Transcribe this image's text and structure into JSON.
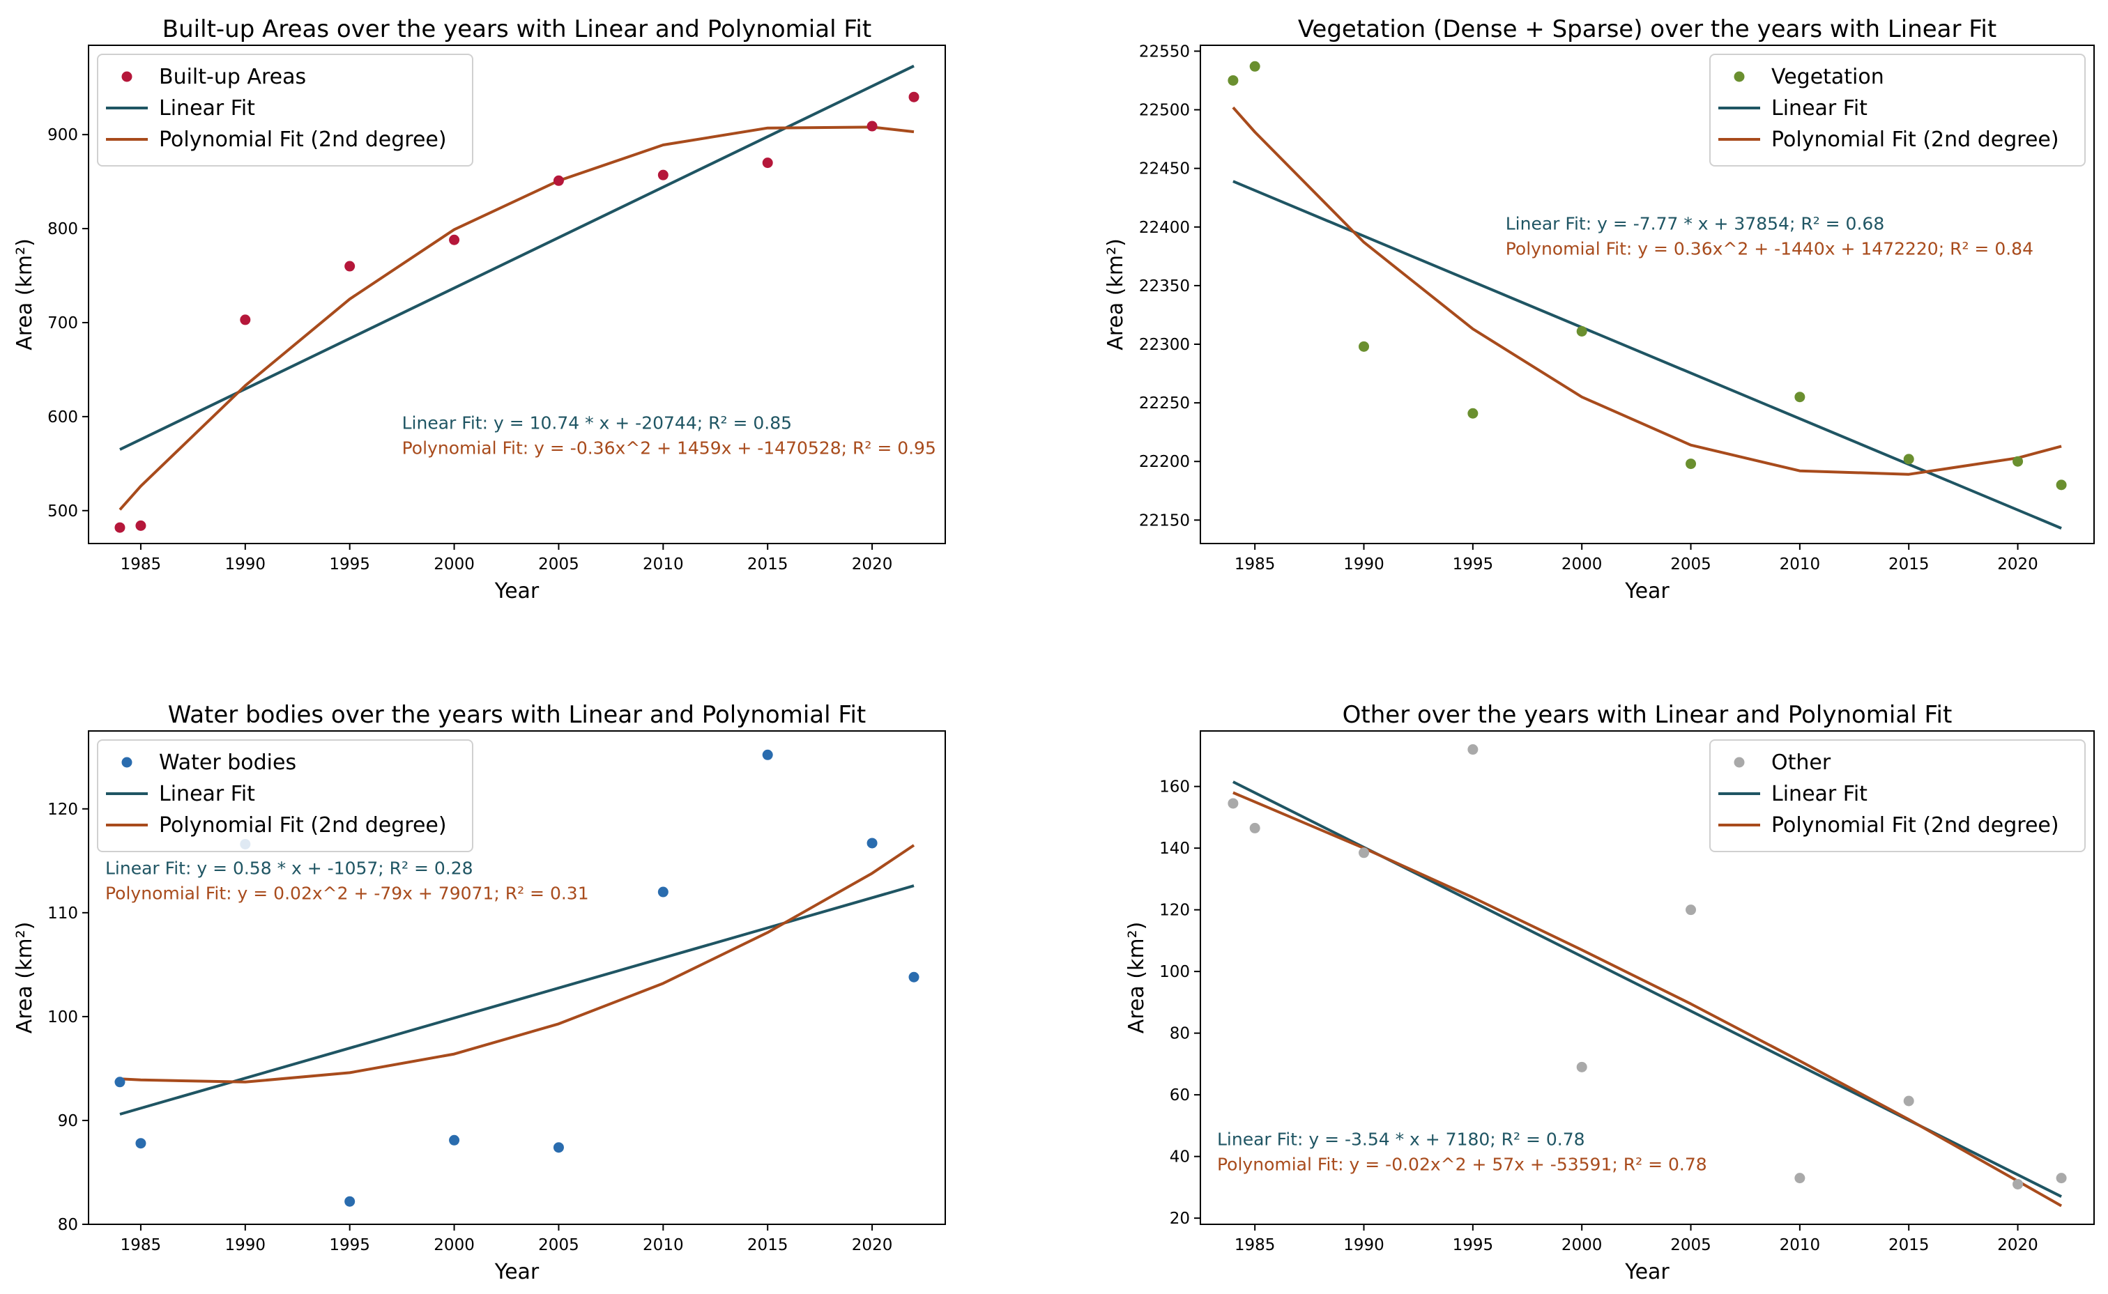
{
  "colors": {
    "linear": "#1f5563",
    "poly": "#a84b1c",
    "builtup": "#b5173a",
    "vegetation": "#6a8f2f",
    "water": "#2a6cae",
    "other": "#a9a9a9",
    "axis": "#000000",
    "text": "#000000",
    "legend_border": "#d0d0d0"
  },
  "chart_data": [
    {
      "type": "scatter",
      "title": "Built-up Areas over the years with Linear and Polynomial Fit",
      "xlabel": "Year",
      "ylabel": "Area (km²)",
      "xlim": [
        1982.5,
        2023.5
      ],
      "ylim": [
        465,
        995
      ],
      "xticks": [
        1985,
        1990,
        1995,
        2000,
        2005,
        2010,
        2015,
        2020
      ],
      "yticks": [
        500,
        600,
        700,
        800,
        900
      ],
      "legend_loc": "upper-left",
      "annotation_loc": "lower-right",
      "scatter": {
        "name": "Built-up Areas",
        "color_key": "builtup",
        "x": [
          1984,
          1985,
          1990,
          1995,
          2000,
          2005,
          2010,
          2015,
          2020,
          2022
        ],
        "y": [
          482,
          484,
          703,
          760,
          788,
          851,
          857,
          870,
          909,
          940
        ]
      },
      "series": [
        {
          "name": "Linear Fit",
          "color_key": "linear",
          "x": [
            1984,
            2022
          ],
          "y": [
            565,
            973
          ]
        },
        {
          "name": "Polynomial Fit (2nd degree)",
          "color_key": "poly",
          "x": [
            1984,
            1985,
            1990,
            1995,
            2000,
            2005,
            2010,
            2015,
            2020,
            2022
          ],
          "y": [
            501,
            526,
            633,
            725,
            799,
            851,
            889,
            907,
            908,
            903
          ]
        }
      ],
      "annotations": [
        "Linear Fit: y = 10.74 * x + -20744; R² = 0.85",
        "Polynomial Fit: y = -0.36x^2 + 1459x + -1470528; R² = 0.95"
      ]
    },
    {
      "type": "scatter",
      "title": "Vegetation (Dense + Sparse) over the years with Linear Fit",
      "xlabel": "Year",
      "ylabel": "Area (km²)",
      "xlim": [
        1982.5,
        2023.5
      ],
      "ylim": [
        22130,
        22555
      ],
      "xticks": [
        1985,
        1990,
        1995,
        2000,
        2005,
        2010,
        2015,
        2020
      ],
      "yticks": [
        22150,
        22200,
        22250,
        22300,
        22350,
        22400,
        22450,
        22500,
        22550
      ],
      "legend_loc": "upper-right",
      "annotation_loc": "upper-right",
      "scatter": {
        "name": "Vegetation",
        "color_key": "vegetation",
        "x": [
          1984,
          1985,
          1990,
          1995,
          2000,
          2005,
          2010,
          2015,
          2020,
          2022
        ],
        "y": [
          22525,
          22537,
          22298,
          22241,
          22311,
          22198,
          22255,
          22202,
          22200,
          22180
        ]
      },
      "series": [
        {
          "name": "Linear Fit",
          "color_key": "linear",
          "x": [
            1984,
            2022
          ],
          "y": [
            22439,
            22143
          ]
        },
        {
          "name": "Polynomial Fit (2nd degree)",
          "color_key": "poly",
          "x": [
            1984,
            1985,
            1990,
            1995,
            2000,
            2005,
            2010,
            2015,
            2020,
            2022
          ],
          "y": [
            22502,
            22481,
            22387,
            22313,
            22255,
            22214,
            22192,
            22189,
            22203,
            22213
          ]
        }
      ],
      "annotations": [
        "Linear Fit: y = -7.77 * x + 37854; R² = 0.68",
        "Polynomial Fit: y = 0.36x^2 + -1440x + 1472220; R² = 0.84"
      ]
    },
    {
      "type": "scatter",
      "title": "Water bodies over the years with Linear and Polynomial Fit",
      "xlabel": "Year",
      "ylabel": "Area (km²)",
      "xlim": [
        1982.5,
        2023.5
      ],
      "ylim": [
        80,
        127.5
      ],
      "xticks": [
        1985,
        1990,
        1995,
        2000,
        2005,
        2010,
        2015,
        2020
      ],
      "yticks": [
        80,
        90,
        100,
        110,
        120
      ],
      "legend_loc": "upper-left",
      "annotation_loc": "upper-left",
      "scatter": {
        "name": "Water bodies",
        "color_key": "water",
        "x": [
          1984,
          1985,
          1990,
          1995,
          2000,
          2005,
          2010,
          2015,
          2020,
          2022
        ],
        "y": [
          93.7,
          87.8,
          116.6,
          82.2,
          88.1,
          87.4,
          112.0,
          125.2,
          116.7,
          103.8
        ]
      },
      "series": [
        {
          "name": "Linear Fit",
          "color_key": "linear",
          "x": [
            1984,
            2022
          ],
          "y": [
            90.6,
            112.6
          ]
        },
        {
          "name": "Polynomial Fit (2nd degree)",
          "color_key": "poly",
          "x": [
            1984,
            1985,
            1990,
            1995,
            2000,
            2005,
            2010,
            2015,
            2020,
            2022
          ],
          "y": [
            94.0,
            93.9,
            93.7,
            94.6,
            96.4,
            99.3,
            103.2,
            108.1,
            113.8,
            116.5
          ]
        }
      ],
      "annotations": [
        "Linear Fit: y = 0.58 * x + -1057; R² = 0.28",
        "Polynomial Fit: y = 0.02x^2 + -79x + 79071; R² = 0.31"
      ]
    },
    {
      "type": "scatter",
      "title": "Other over the years with Linear and Polynomial Fit",
      "xlabel": "Year",
      "ylabel": "Area (km²)",
      "xlim": [
        1982.5,
        2023.5
      ],
      "ylim": [
        18,
        178
      ],
      "xticks": [
        1985,
        1990,
        1995,
        2000,
        2005,
        2010,
        2015,
        2020
      ],
      "yticks": [
        20,
        40,
        60,
        80,
        100,
        120,
        140,
        160
      ],
      "legend_loc": "upper-right",
      "annotation_loc": "lower-left",
      "scatter": {
        "name": "Other",
        "color_key": "other",
        "x": [
          1984,
          1985,
          1990,
          1995,
          2000,
          2005,
          2010,
          2015,
          2020,
          2022
        ],
        "y": [
          154.5,
          146.5,
          138.5,
          172,
          69,
          120,
          33,
          58,
          31,
          33
        ]
      },
      "series": [
        {
          "name": "Linear Fit",
          "color_key": "linear",
          "x": [
            1984,
            2022
          ],
          "y": [
            161.5,
            27
          ]
        },
        {
          "name": "Polynomial Fit (2nd degree)",
          "color_key": "poly",
          "x": [
            1984,
            1990,
            1995,
            2000,
            2005,
            2010,
            2015,
            2020,
            2022
          ],
          "y": [
            158,
            140,
            124,
            107,
            89.5,
            71,
            52,
            32,
            24
          ]
        }
      ],
      "annotations": [
        "Linear Fit: y = -3.54 * x + 7180; R² = 0.78",
        "Polynomial Fit: y = -0.02x^2 + 57x + -53591; R² = 0.78"
      ]
    }
  ]
}
